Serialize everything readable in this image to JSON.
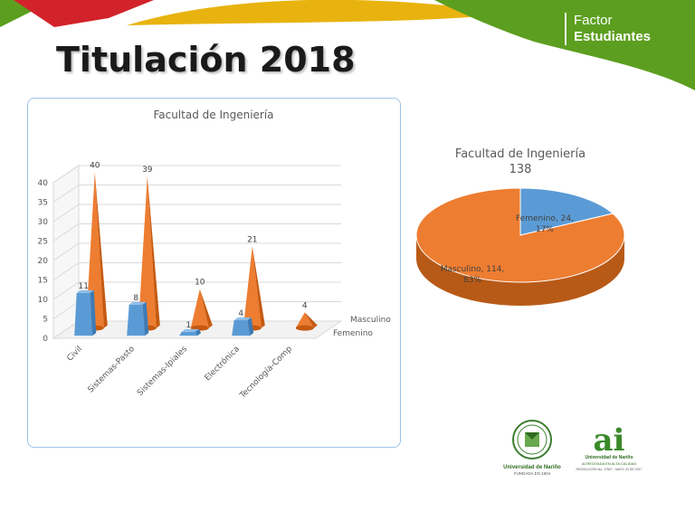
{
  "slide": {
    "title": "Titulación 2018"
  },
  "brand": {
    "line1": "Factor",
    "line2": "Estudiantes"
  },
  "colors": {
    "femenino": "#5b9bd5",
    "masculino": "#ed7d31",
    "green": "#5c9e1f",
    "red": "#d2232a",
    "yellow": "#e8b30f"
  },
  "chart_data": [
    {
      "type": "bar",
      "title": "Facultad de Ingeniería",
      "categories": [
        "Civil",
        "Sistemas-Pasto",
        "Sistemas-Ipiales",
        "Electrónica",
        "Tecnología-Comp"
      ],
      "series": [
        {
          "name": "Femenino",
          "values": [
            11,
            8,
            1,
            4,
            null
          ]
        },
        {
          "name": "Masculino",
          "values": [
            40,
            39,
            10,
            21,
            4
          ]
        }
      ],
      "ylim": [
        0,
        40
      ],
      "yticks": [
        "0",
        "5",
        "10",
        "15",
        "20",
        "25",
        "30",
        "35",
        "40"
      ],
      "grid": true,
      "style": "3d-cone",
      "legend": "depth-axis"
    },
    {
      "type": "pie",
      "title": "Facultad de Ingeniería",
      "subtitle": "138",
      "slices": [
        {
          "name": "Femenino",
          "value": 24,
          "percent": "17%",
          "label": "Femenino, 24,",
          "label_pct": "17%"
        },
        {
          "name": "Masculino",
          "value": 114,
          "percent": "83%",
          "label": "Masculino, 114,",
          "label_pct": "83%"
        }
      ],
      "style": "3d"
    }
  ],
  "logos": {
    "udenar": {
      "name": "Universidad de Nariño",
      "tagline": "FUNDADA EN 1904"
    },
    "ai": {
      "mark": "ai",
      "line1": "Universidad de Nariño",
      "line2": "ACREDITADA EN ALTA CALIDAD",
      "line3": "RESOLUCIÓN No. 17847 - MAYO 23 DE 2017"
    }
  }
}
